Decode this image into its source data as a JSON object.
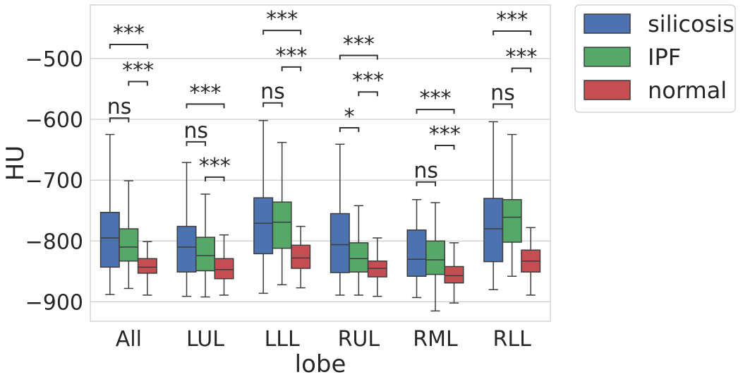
{
  "chart_data": {
    "type": "boxplot",
    "title": "",
    "xlabel": "lobe",
    "ylabel": "HU",
    "ylim": [
      -932,
      -412
    ],
    "yticks": [
      -500,
      -600,
      -700,
      -800,
      -900
    ],
    "ytick_labels": [
      "−500",
      "−600",
      "−700",
      "−800",
      "−900"
    ],
    "grid": true,
    "legend_position": "outside-top-right",
    "categories": [
      "All",
      "LUL",
      "LLL",
      "RUL",
      "RML",
      "RLL"
    ],
    "series": [
      {
        "name": "silicosis",
        "color": "#4c72b0",
        "boxes": [
          {
            "whislo": -888,
            "q1": -843,
            "med": -795,
            "q3": -753,
            "whishi": -625
          },
          {
            "whislo": -891,
            "q1": -851,
            "med": -810,
            "q3": -776,
            "whishi": -671
          },
          {
            "whislo": -886,
            "q1": -821,
            "med": -771,
            "q3": -729,
            "whishi": -602
          },
          {
            "whislo": -889,
            "q1": -852,
            "med": -806,
            "q3": -755,
            "whishi": -641
          },
          {
            "whislo": -893,
            "q1": -858,
            "med": -830,
            "q3": -782,
            "whishi": -732
          },
          {
            "whislo": -880,
            "q1": -834,
            "med": -780,
            "q3": -730,
            "whishi": -604
          }
        ]
      },
      {
        "name": "IPF",
        "color": "#55a868",
        "boxes": [
          {
            "whislo": -878,
            "q1": -833,
            "med": -810,
            "q3": -780,
            "whishi": -701
          },
          {
            "whislo": -892,
            "q1": -849,
            "med": -824,
            "q3": -794,
            "whishi": -723
          },
          {
            "whislo": -872,
            "q1": -812,
            "med": -769,
            "q3": -736,
            "whishi": -638
          },
          {
            "whislo": -889,
            "q1": -851,
            "med": -829,
            "q3": -803,
            "whishi": -742
          },
          {
            "whislo": -915,
            "q1": -855,
            "med": -831,
            "q3": -800,
            "whishi": -737
          },
          {
            "whislo": -858,
            "q1": -802,
            "med": -761,
            "q3": -732,
            "whishi": -625
          }
        ]
      },
      {
        "name": "normal",
        "color": "#c44e52",
        "boxes": [
          {
            "whislo": -889,
            "q1": -853,
            "med": -843,
            "q3": -829,
            "whishi": -801
          },
          {
            "whislo": -889,
            "q1": -862,
            "med": -847,
            "q3": -829,
            "whishi": -790
          },
          {
            "whislo": -877,
            "q1": -845,
            "med": -828,
            "q3": -807,
            "whishi": -776
          },
          {
            "whislo": -891,
            "q1": -859,
            "med": -845,
            "q3": -833,
            "whishi": -795
          },
          {
            "whislo": -902,
            "q1": -869,
            "med": -857,
            "q3": -842,
            "whishi": -803
          },
          {
            "whislo": -889,
            "q1": -851,
            "med": -833,
            "q3": -815,
            "whishi": -778
          }
        ]
      }
    ],
    "annotations": [
      {
        "category": "All",
        "from": 0,
        "to": 1,
        "y": -598,
        "label": "ns"
      },
      {
        "category": "All",
        "from": 0,
        "to": 2,
        "y": -477,
        "label": "***"
      },
      {
        "category": "All",
        "from": 1,
        "to": 2,
        "y": -538,
        "label": "***"
      },
      {
        "category": "LUL",
        "from": 0,
        "to": 1,
        "y": -637,
        "label": "ns"
      },
      {
        "category": "LUL",
        "from": 0,
        "to": 2,
        "y": -575,
        "label": "***"
      },
      {
        "category": "LUL",
        "from": 1,
        "to": 2,
        "y": -695,
        "label": "***"
      },
      {
        "category": "LLL",
        "from": 0,
        "to": 1,
        "y": -573,
        "label": "ns"
      },
      {
        "category": "LLL",
        "from": 0,
        "to": 2,
        "y": -454,
        "label": "***"
      },
      {
        "category": "LLL",
        "from": 1,
        "to": 2,
        "y": -514,
        "label": "***"
      },
      {
        "category": "RUL",
        "from": 0,
        "to": 1,
        "y": -614,
        "label": "*"
      },
      {
        "category": "RUL",
        "from": 0,
        "to": 2,
        "y": -495,
        "label": "***"
      },
      {
        "category": "RUL",
        "from": 1,
        "to": 2,
        "y": -555,
        "label": "***"
      },
      {
        "category": "RML",
        "from": 0,
        "to": 1,
        "y": -703,
        "label": "ns"
      },
      {
        "category": "RML",
        "from": 0,
        "to": 2,
        "y": -584,
        "label": "***"
      },
      {
        "category": "RML",
        "from": 1,
        "to": 2,
        "y": -643,
        "label": "***"
      },
      {
        "category": "RLL",
        "from": 0,
        "to": 1,
        "y": -575,
        "label": "ns"
      },
      {
        "category": "RLL",
        "from": 0,
        "to": 2,
        "y": -455,
        "label": "***"
      },
      {
        "category": "RLL",
        "from": 1,
        "to": 2,
        "y": -516,
        "label": "***"
      }
    ]
  }
}
